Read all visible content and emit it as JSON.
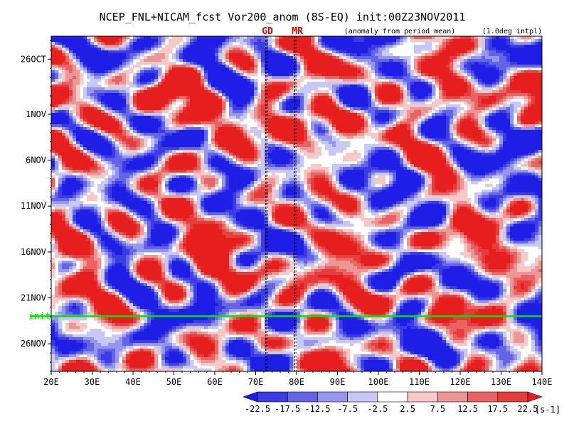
{
  "chart_data": {
    "type": "heatmap",
    "title": "NCEP_FNL+NICAM_fcst Vor200_anom (8S-EQ) init:00Z23NOV2011",
    "subtitle_left": "GD",
    "subtitle_mid": "MR",
    "subtitle_note": "(anomaly from period mean)",
    "subtitle_right": "(1.0deg intpl)",
    "x_ticks": [
      "20E",
      "30E",
      "40E",
      "50E",
      "60E",
      "70E",
      "80E",
      "90E",
      "100E",
      "110E",
      "120E",
      "130E",
      "140E"
    ],
    "x_values": [
      20,
      30,
      40,
      50,
      60,
      70,
      80,
      90,
      100,
      110,
      120,
      130,
      140
    ],
    "xlim": [
      20,
      140
    ],
    "y_ticks": [
      "26OCT",
      "1NOV",
      "6NOV",
      "11NOV",
      "16NOV",
      "21NOV",
      "26NOV"
    ],
    "y_values": [
      0,
      6,
      11,
      16,
      21,
      26,
      31
    ],
    "ylim_days": [
      -2.5,
      34
    ],
    "init_label": "init",
    "init_day": 28,
    "vertical_markers": [
      72.5,
      79.5
    ],
    "colorbar": {
      "levels": [
        "-22.5",
        "-17.5",
        "-12.5",
        "-7.5",
        "-2.5",
        "2.5",
        "7.5",
        "12.5",
        "17.5",
        "22.5"
      ],
      "unit": "[s-1]",
      "colors": [
        "#1e1ee6",
        "#3c3ce6",
        "#6464e6",
        "#9696ee",
        "#c8c8f6",
        "#ffffff",
        "#f6c8c8",
        "#ee9696",
        "#e86464",
        "#e63c3c",
        "#e61e1e"
      ]
    },
    "features": [
      {
        "lon": 70,
        "day": 11,
        "value": 20
      },
      {
        "lon": 128,
        "day": 11,
        "value": -20
      },
      {
        "lon": 105,
        "day": 22,
        "value": -15
      },
      {
        "lon": 85,
        "day": 29,
        "value": 22
      }
    ],
    "colors": {
      "init_line": "#00e600",
      "marker_red": "#e60000"
    }
  }
}
